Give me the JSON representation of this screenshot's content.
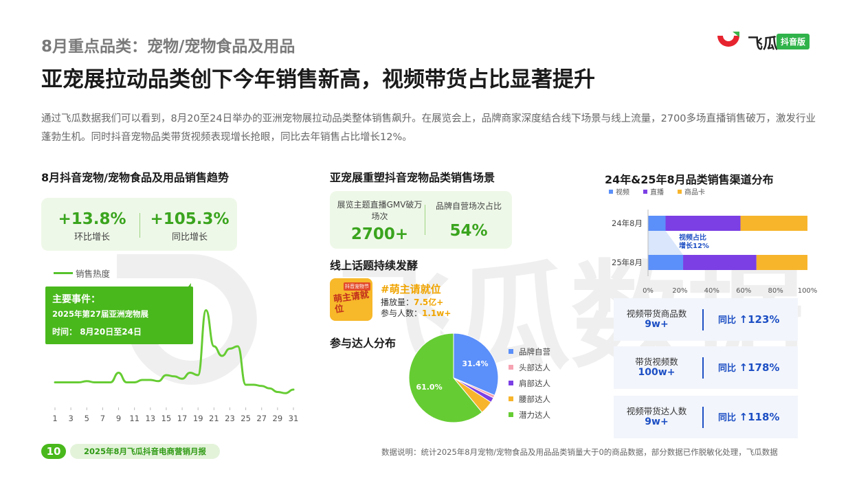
{
  "header": {
    "kicker": "8月重点品类：宠物/宠物食品及用品",
    "headline": "亚宠展拉动品类创下今年销售新高，视频带货占比显著提升",
    "description": "通过飞瓜数据我们可以看到，8月20至24日举办的亚洲宠物展拉动品类整体销售飙升。在展览会上，品牌商家深度结合线下场景与线上流量，2700多场直播销售破万，激发行业蓬勃生机。同时抖音宠物品类带货视频表现增长抢眼，同比去年销售占比增长12%。"
  },
  "logo": {
    "name": "飞瓜",
    "badge": "抖音版"
  },
  "watermark": "飞瓜数据",
  "left": {
    "title": "8月抖音宠物/宠物食品及用品销售趋势",
    "stats": [
      {
        "value": "+13.8%",
        "label": "环比增长"
      },
      {
        "value": "+105.3%",
        "label": "同比增长"
      }
    ],
    "legend": "销售热度",
    "callout": {
      "title": "主要事件：",
      "event": "2025年第27届亚洲宠物展",
      "time_label": "时间：",
      "time_value": "8月20日至24日"
    }
  },
  "middle": {
    "title": "亚宠展重塑抖音宠物品类销售场景",
    "stats": [
      {
        "label": "展览主题直播GMV破万场次",
        "value": "2700+"
      },
      {
        "label": "品牌自营场次占比",
        "value": "54%"
      }
    ],
    "topic_title": "线上话题持续发酵",
    "topic": {
      "image_text": "萌主请就位",
      "image_tag": "抖音宠物节",
      "name": "#萌主请就位",
      "plays_label": "播放量：",
      "plays_value": "7.5亿+",
      "people_label": "参与人数：",
      "people_value": "1.1w+"
    },
    "pie_title": "参与达人分布"
  },
  "right": {
    "title": "24年&25年8月品类销售渠道分布",
    "annotation": [
      "视频占比",
      "增长12%"
    ],
    "stats": [
      {
        "label": "视频带货商品数",
        "value": "9w+",
        "growth_label": "同比",
        "growth_value": "123%"
      },
      {
        "label": "带货视频数",
        "value": "100w+",
        "growth_label": "同比",
        "growth_value": "178%"
      },
      {
        "label": "视频带货达人数",
        "value": "9w+",
        "growth_label": "同比",
        "growth_value": "118%"
      }
    ]
  },
  "footer": {
    "page": "10",
    "report": "2025年8月飞瓜抖音电商营销月报",
    "note": "数据说明：统计2025年8月宠物/宠物食品及用品品类销量大于0的商品数据，部分数据已作脱敏化处理，飞瓜数据"
  },
  "colors": {
    "green": "#49b81c",
    "line": "#66cc33",
    "blue": "#5b8ff9",
    "purple": "#7b3fe4",
    "orange": "#f7b52c",
    "pink": "#f6a3b2",
    "stat_blue": "#1d4fc4"
  },
  "chart_data": [
    {
      "type": "line",
      "series": [
        {
          "name": "销售热度",
          "values": [
            22,
            22,
            22,
            22,
            23,
            22,
            22,
            22,
            30,
            22,
            22,
            24,
            24,
            23,
            28,
            27,
            25,
            30,
            28,
            82,
            52,
            44,
            50,
            52,
            20,
            20,
            19,
            17,
            14,
            13,
            16
          ]
        }
      ],
      "x": [
        1,
        2,
        3,
        4,
        5,
        6,
        7,
        8,
        9,
        10,
        11,
        12,
        13,
        14,
        15,
        16,
        17,
        18,
        19,
        20,
        21,
        22,
        23,
        24,
        25,
        26,
        27,
        28,
        29,
        30,
        31
      ],
      "tick_labels": [
        "1",
        "3",
        "5",
        "7",
        "9",
        "11",
        "13",
        "15",
        "17",
        "19",
        "21",
        "23",
        "25",
        "27",
        "29",
        "31"
      ],
      "ylim": [
        0,
        100
      ],
      "grid": false
    },
    {
      "type": "pie",
      "categories": [
        "品牌自营",
        "头部达人",
        "肩部达人",
        "腰部达人",
        "潜力达人"
      ],
      "values": [
        31.4,
        1.0,
        1.8,
        4.8,
        61.0
      ],
      "labels": [
        "31.4%",
        "",
        "",
        "",
        "61.0%"
      ],
      "colors": [
        "#5b8ff9",
        "#f6a3b2",
        "#7b3fe4",
        "#f7b52c",
        "#66cc33"
      ],
      "legend": "right"
    },
    {
      "type": "bar",
      "orientation": "horizontal",
      "stacked": true,
      "categories": [
        "24年8月",
        "25年8月"
      ],
      "series": [
        {
          "name": "视频",
          "values": [
            11,
            22
          ]
        },
        {
          "name": "直播",
          "values": [
            47,
            46
          ]
        },
        {
          "name": "商品卡",
          "values": [
            42,
            32
          ]
        }
      ],
      "xlim": [
        0,
        100
      ],
      "tick_labels": [
        "0%",
        "20%",
        "40%",
        "60%",
        "80%",
        "100%"
      ],
      "legend": "top-left"
    }
  ]
}
